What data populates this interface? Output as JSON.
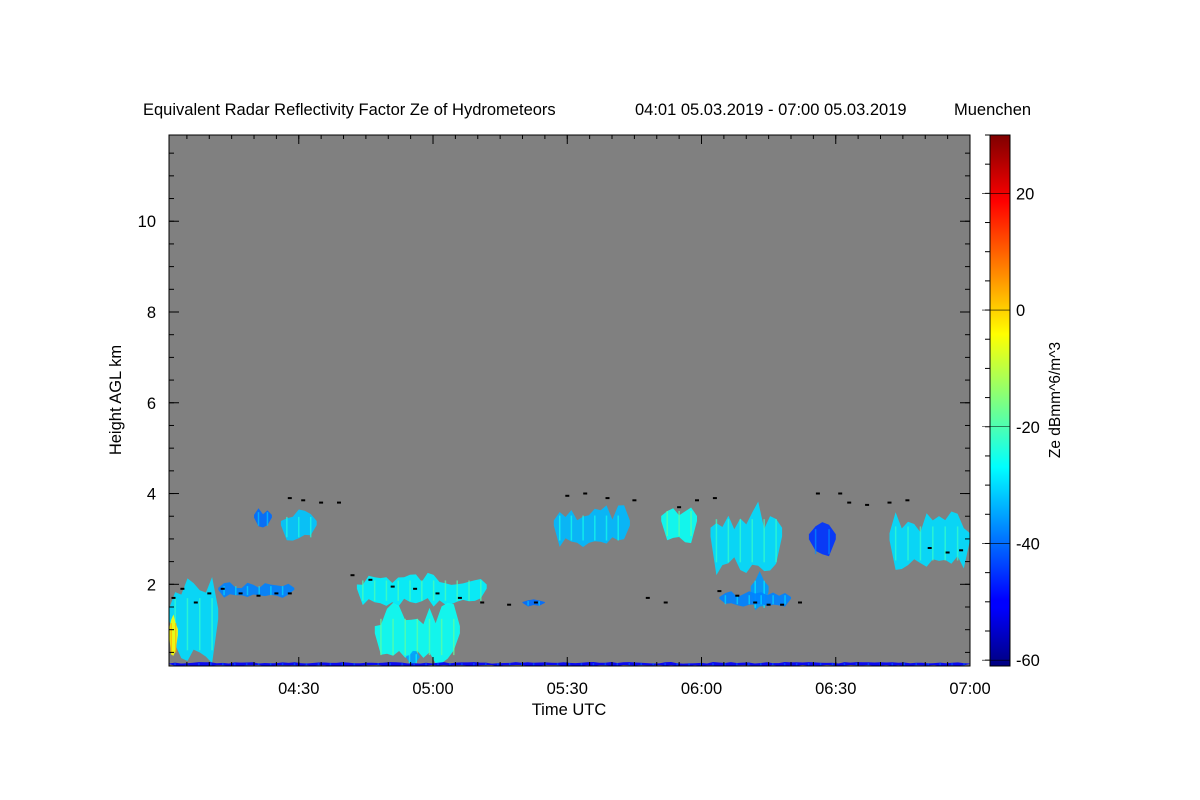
{
  "chart_data": {
    "type": "heatmap",
    "title": "Equivalent Radar Reflectivity Factor Ze of Hydrometeors",
    "period": "04:01 05.03.2019 - 07:00 05.03.2019",
    "location": "Muenchen",
    "xlabel": "Time UTC",
    "ylabel": "Height AGL km",
    "colorbar_label": "Ze dBmm^6/m^3",
    "x_ticks": [
      "04:30",
      "05:00",
      "05:30",
      "06:00",
      "06:30",
      "07:00"
    ],
    "x_tick_values": [
      29,
      59,
      89,
      119,
      149,
      179
    ],
    "xlim": [
      0,
      179
    ],
    "y_ticks": [
      "2",
      "4",
      "6",
      "8",
      "10"
    ],
    "y_tick_values": [
      2,
      4,
      6,
      8,
      10
    ],
    "ylim": [
      0.2,
      11.9
    ],
    "colorbar_ticks": [
      "20",
      "0",
      "-20",
      "-40",
      "-60"
    ],
    "colorbar_tick_values": [
      20,
      0,
      -20,
      -40,
      -60
    ],
    "colorbar_range": [
      -61,
      30
    ],
    "no_data_color": "#808080",
    "colormap": "jet",
    "echo_regions": [
      {
        "time_min": [
          0,
          11
        ],
        "height_km": [
          0.2,
          2.5
        ],
        "ze_dbz": -30
      },
      {
        "time_min": [
          0,
          2
        ],
        "height_km": [
          0.3,
          1.6
        ],
        "ze_dbz": -5
      },
      {
        "time_min": [
          11,
          28
        ],
        "height_km": [
          1.7,
          2.1
        ],
        "ze_dbz": -38
      },
      {
        "time_min": [
          19,
          23
        ],
        "height_km": [
          3.2,
          3.8
        ],
        "ze_dbz": -40
      },
      {
        "time_min": [
          25,
          33
        ],
        "height_km": [
          2.9,
          3.8
        ],
        "ze_dbz": -32
      },
      {
        "time_min": [
          42,
          71
        ],
        "height_km": [
          1.5,
          2.4
        ],
        "ze_dbz": -28
      },
      {
        "time_min": [
          46,
          65
        ],
        "height_km": [
          0.2,
          1.8
        ],
        "ze_dbz": -26
      },
      {
        "time_min": [
          53,
          56
        ],
        "height_km": [
          0.2,
          0.6
        ],
        "ze_dbz": -35
      },
      {
        "time_min": [
          79,
          84
        ],
        "height_km": [
          1.5,
          1.7
        ],
        "ze_dbz": -40
      },
      {
        "time_min": [
          86,
          103
        ],
        "height_km": [
          2.8,
          3.9
        ],
        "ze_dbz": -33
      },
      {
        "time_min": [
          110,
          118
        ],
        "height_km": [
          2.9,
          4.0
        ],
        "ze_dbz": -26
      },
      {
        "time_min": [
          121,
          137
        ],
        "height_km": [
          2.2,
          4.1
        ],
        "ze_dbz": -30
      },
      {
        "time_min": [
          130,
          134
        ],
        "height_km": [
          1.3,
          2.5
        ],
        "ze_dbz": -36
      },
      {
        "time_min": [
          123,
          139
        ],
        "height_km": [
          1.5,
          1.9
        ],
        "ze_dbz": -38
      },
      {
        "time_min": [
          143,
          149
        ],
        "height_km": [
          2.5,
          3.6
        ],
        "ze_dbz": -45
      },
      {
        "time_min": [
          161,
          179
        ],
        "height_km": [
          2.3,
          3.8
        ],
        "ze_dbz": -30
      },
      {
        "time_min": [
          0,
          179
        ],
        "height_km": [
          0.2,
          0.3
        ],
        "ze_dbz": -50
      }
    ],
    "cloud_base_points": [
      [
        1,
        1.7
      ],
      [
        3,
        1.9
      ],
      [
        6,
        1.6
      ],
      [
        9,
        1.8
      ],
      [
        12,
        1.9
      ],
      [
        16,
        1.8
      ],
      [
        20,
        1.75
      ],
      [
        24,
        1.8
      ],
      [
        27,
        1.8
      ],
      [
        27,
        3.9
      ],
      [
        30,
        3.85
      ],
      [
        34,
        3.8
      ],
      [
        38,
        3.8
      ],
      [
        41,
        2.2
      ],
      [
        45,
        2.1
      ],
      [
        50,
        1.95
      ],
      [
        55,
        1.9
      ],
      [
        60,
        1.8
      ],
      [
        65,
        1.7
      ],
      [
        70,
        1.6
      ],
      [
        76,
        1.55
      ],
      [
        82,
        1.6
      ],
      [
        89,
        3.95
      ],
      [
        93,
        4.0
      ],
      [
        98,
        3.9
      ],
      [
        104,
        3.85
      ],
      [
        107,
        1.7
      ],
      [
        111,
        1.6
      ],
      [
        114,
        3.7
      ],
      [
        118,
        3.85
      ],
      [
        122,
        3.9
      ],
      [
        123,
        1.85
      ],
      [
        127,
        1.75
      ],
      [
        131,
        1.6
      ],
      [
        134,
        1.55
      ],
      [
        137,
        1.55
      ],
      [
        141,
        1.6
      ],
      [
        145,
        4.0
      ],
      [
        150,
        4.0
      ],
      [
        152,
        3.8
      ],
      [
        156,
        3.75
      ],
      [
        161,
        3.8
      ],
      [
        165,
        3.85
      ],
      [
        170,
        2.8
      ],
      [
        174,
        2.7
      ],
      [
        177,
        2.75
      ]
    ]
  }
}
